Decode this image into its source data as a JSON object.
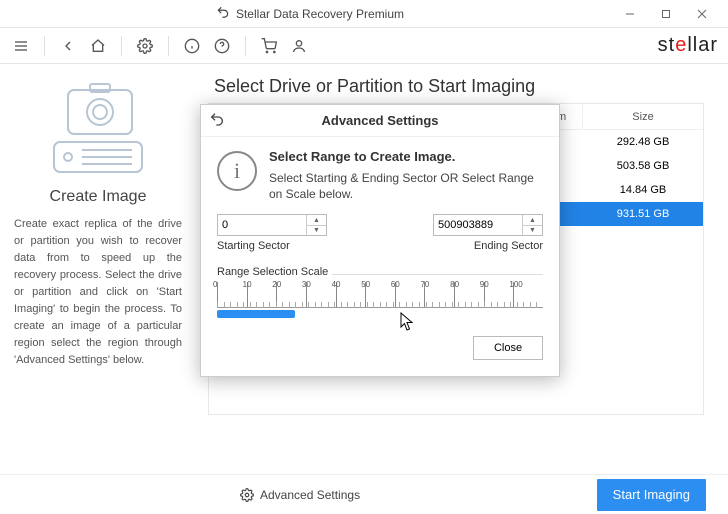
{
  "window": {
    "title": "Stellar Data Recovery Premium"
  },
  "brand": {
    "text_plain": "stellar",
    "accent_index": 2
  },
  "left": {
    "title": "Create Image",
    "description": "Create exact replica of the drive or partition you wish to recover data from to speed up the recovery process. Select the drive or partition and click on 'Start Imaging' to begin the process. To create an image of a particular region select the region through 'Advanced Settings' below."
  },
  "right": {
    "title": "Select Drive or Partition to Start Imaging",
    "columns": {
      "col2": "File System",
      "col3": "Size"
    },
    "rows": [
      {
        "size": "292.48 GB",
        "selected": false
      },
      {
        "size": "503.58 GB",
        "selected": false
      },
      {
        "size": "14.84 GB",
        "selected": false
      },
      {
        "size": "931.51 GB",
        "selected": true
      }
    ]
  },
  "footer": {
    "advanced": "Advanced Settings",
    "start": "Start Imaging"
  },
  "modal": {
    "title": "Advanced Settings",
    "header": "Select Range to Create Image.",
    "subtext": "Select Starting & Ending Sector OR Select Range on Scale below.",
    "start_value": "0",
    "start_label": "Starting Sector",
    "end_value": "500903889",
    "end_label": "Ending Sector",
    "range_label": "Range Selection Scale",
    "ticks": [
      "0",
      "10",
      "20",
      "30",
      "40",
      "50",
      "60",
      "70",
      "80",
      "90",
      "100"
    ],
    "fill_percent": 24,
    "close": "Close"
  },
  "colors": {
    "accent": "#2c8ef0",
    "selection": "#2283e6",
    "brand_accent": "#e51b1b"
  }
}
